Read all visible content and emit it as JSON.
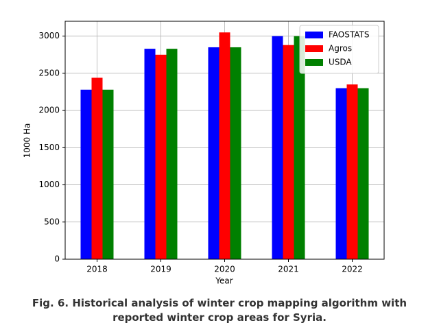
{
  "chart_data": {
    "type": "bar",
    "categories": [
      "2018",
      "2019",
      "2020",
      "2021",
      "2022"
    ],
    "series": [
      {
        "name": "FAOSTATS",
        "color": "#0000ff",
        "values": [
          2280,
          2830,
          2850,
          3000,
          2300
        ]
      },
      {
        "name": "Agros",
        "color": "#ff0000",
        "values": [
          2440,
          2750,
          3050,
          2880,
          2350
        ]
      },
      {
        "name": "USDA",
        "color": "#008000",
        "values": [
          2280,
          2830,
          2850,
          3000,
          2300
        ]
      }
    ],
    "xlabel": "Year",
    "ylabel": "1000 Ha",
    "ylim": [
      0,
      3200
    ],
    "yticks": [
      0,
      500,
      1000,
      1500,
      2000,
      2500,
      3000
    ],
    "grid": true,
    "legend": "upper right",
    "caption": "Fig. 6.  Historical analysis of winter crop mapping algorithm with reported winter crop areas for Syria."
  }
}
